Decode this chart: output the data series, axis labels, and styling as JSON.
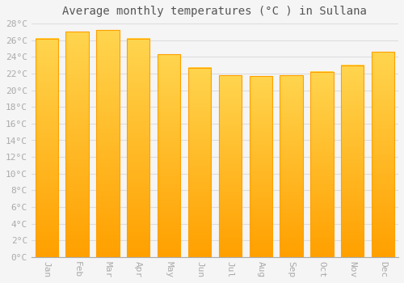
{
  "title": "Average monthly temperatures (°C ) in Sullana",
  "months": [
    "Jan",
    "Feb",
    "Mar",
    "Apr",
    "May",
    "Jun",
    "Jul",
    "Aug",
    "Sep",
    "Oct",
    "Nov",
    "Dec"
  ],
  "values": [
    26.2,
    27.0,
    27.2,
    26.2,
    24.3,
    22.7,
    21.8,
    21.7,
    21.8,
    22.2,
    23.0,
    24.6
  ],
  "bar_color_top": "#FFD54F",
  "bar_color_bottom": "#FFA000",
  "ylim": [
    0,
    28
  ],
  "ytick_step": 2,
  "background_color": "#f5f5f5",
  "plot_bg_color": "#f5f5f5",
  "grid_color": "#dddddd",
  "title_fontsize": 10,
  "tick_fontsize": 8,
  "tick_color": "#aaaaaa",
  "title_color": "#555555"
}
